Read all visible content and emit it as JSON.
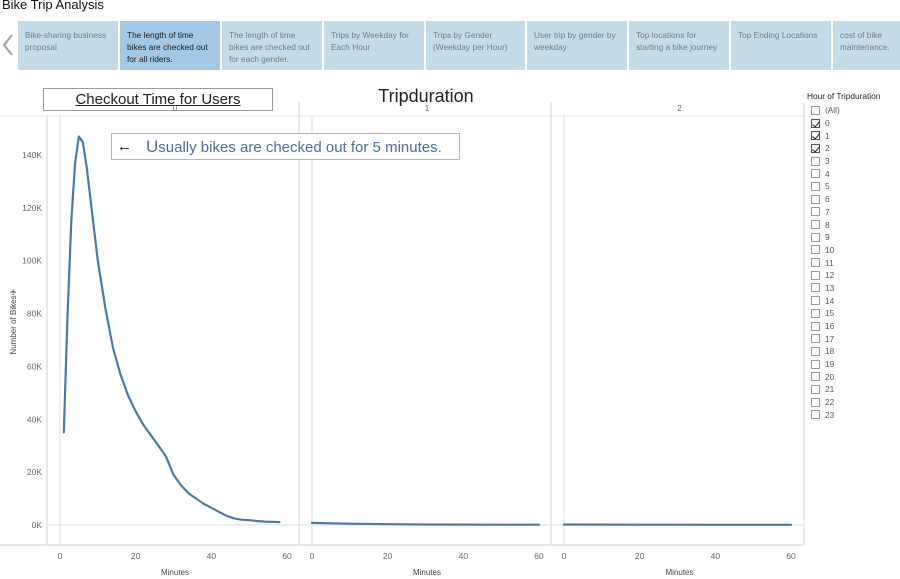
{
  "app": {
    "title": "Bike Trip Analysis"
  },
  "story_tabs": [
    {
      "label": "Bike-sharing business proposal",
      "active": false
    },
    {
      "label": "The length of time bikes are checked out for all riders.",
      "active": true
    },
    {
      "label": "The length of time bikes are checked out for each gender.",
      "active": false
    },
    {
      "label": "Trips by Weekday for Each Hour",
      "active": false
    },
    {
      "label": "Trips by Gender (Weekday per Hour)",
      "active": false
    },
    {
      "label": "User trip by gender by weekday",
      "active": false
    },
    {
      "label": "Top locations for starting a bike journey",
      "active": false
    },
    {
      "label": "Top Ending Locations",
      "active": false
    },
    {
      "label": "cost of bike maintenance.",
      "active": false
    }
  ],
  "dashboard": {
    "title": "Tripduration",
    "checkout_label": "Checkout Time for Users",
    "annotation": {
      "first_letter": "U",
      "rest": "sually bikes are checked out for 5  minutes."
    }
  },
  "chart_data": {
    "type": "line",
    "title": "Tripduration",
    "ylabel": "Number of Bikes",
    "xlabel": "Minutes",
    "panel_labels": [
      "0",
      "1",
      "2"
    ],
    "y_ticks": [
      0,
      20000,
      40000,
      60000,
      80000,
      100000,
      120000,
      140000
    ],
    "y_tick_labels": [
      "0K",
      "20K",
      "40K",
      "60K",
      "80K",
      "100K",
      "120K",
      "140K"
    ],
    "x_ticks": [
      0,
      20,
      40,
      60
    ],
    "x_tick_labels": [
      "0",
      "20",
      "40",
      "60"
    ],
    "xlim": [
      -3,
      63
    ],
    "ylim": [
      -8000,
      155000
    ],
    "line_color": "#4e79a7",
    "series": [
      {
        "panel": "0",
        "x": [
          1,
          2,
          3,
          4,
          5,
          6,
          7,
          8,
          9,
          10,
          12,
          14,
          16,
          18,
          20,
          22,
          24,
          26,
          28,
          30,
          32,
          34,
          36,
          38,
          40,
          42,
          44,
          46,
          48,
          50,
          52,
          54,
          56,
          58
        ],
        "y": [
          35000,
          80000,
          115000,
          137000,
          147000,
          145000,
          136000,
          124000,
          112000,
          100000,
          82000,
          67000,
          57000,
          49000,
          43000,
          38000,
          34000,
          30000,
          26000,
          19000,
          15000,
          12000,
          10000,
          8000,
          6500,
          5000,
          3500,
          2500,
          2000,
          1800,
          1500,
          1300,
          1200,
          1100
        ]
      },
      {
        "panel": "1",
        "x": [
          0,
          10,
          20,
          30,
          40,
          50,
          60
        ],
        "y": [
          800,
          500,
          300,
          200,
          150,
          100,
          100
        ]
      },
      {
        "panel": "2",
        "x": [
          0,
          10,
          20,
          30,
          40,
          50,
          60
        ],
        "y": [
          200,
          150,
          120,
          100,
          80,
          60,
          60
        ]
      }
    ]
  },
  "filter": {
    "title": "Hour of Tripduration",
    "items": [
      {
        "label": "(All)",
        "checked": false
      },
      {
        "label": "0",
        "checked": true
      },
      {
        "label": "1",
        "checked": true
      },
      {
        "label": "2",
        "checked": true
      },
      {
        "label": "3",
        "checked": false
      },
      {
        "label": "4",
        "checked": false
      },
      {
        "label": "5",
        "checked": false
      },
      {
        "label": "6",
        "checked": false
      },
      {
        "label": "7",
        "checked": false
      },
      {
        "label": "8",
        "checked": false
      },
      {
        "label": "9",
        "checked": false
      },
      {
        "label": "10",
        "checked": false
      },
      {
        "label": "11",
        "checked": false
      },
      {
        "label": "12",
        "checked": false
      },
      {
        "label": "13",
        "checked": false
      },
      {
        "label": "14",
        "checked": false
      },
      {
        "label": "15",
        "checked": false
      },
      {
        "label": "16",
        "checked": false
      },
      {
        "label": "17",
        "checked": false
      },
      {
        "label": "18",
        "checked": false
      },
      {
        "label": "19",
        "checked": false
      },
      {
        "label": "20",
        "checked": false
      },
      {
        "label": "21",
        "checked": false
      },
      {
        "label": "22",
        "checked": false
      },
      {
        "label": "23",
        "checked": false
      }
    ]
  }
}
